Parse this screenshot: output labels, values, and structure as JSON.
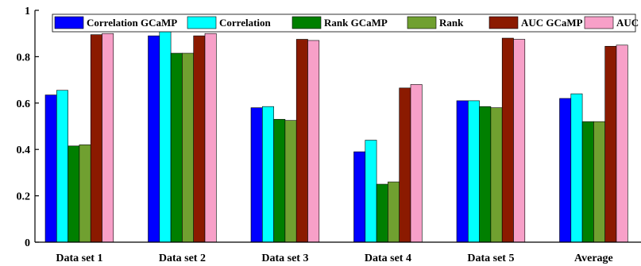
{
  "chart_data": {
    "type": "bar",
    "title": "",
    "xlabel": "",
    "ylabel": "",
    "categories": [
      "Data set 1",
      "Data set 2",
      "Data set 3",
      "Data set 4",
      "Data set 5",
      "Average"
    ],
    "series": [
      {
        "name": "Correlation GCaMP",
        "color": "#0000ff",
        "values": [
          0.635,
          0.89,
          0.58,
          0.39,
          0.61,
          0.62
        ]
      },
      {
        "name": "Correlation",
        "color": "#00ffff",
        "values": [
          0.655,
          0.91,
          0.585,
          0.44,
          0.61,
          0.64
        ]
      },
      {
        "name": "Rank GCaMP",
        "color": "#007f00",
        "values": [
          0.415,
          0.815,
          0.53,
          0.25,
          0.585,
          0.52
        ]
      },
      {
        "name": "Rank",
        "color": "#70a030",
        "values": [
          0.42,
          0.815,
          0.525,
          0.26,
          0.58,
          0.52
        ]
      },
      {
        "name": "AUC GCaMP",
        "color": "#8b1a00",
        "values": [
          0.895,
          0.89,
          0.875,
          0.665,
          0.88,
          0.845
        ]
      },
      {
        "name": "AUC",
        "color": "#f7a0c8",
        "values": [
          0.9,
          0.9,
          0.87,
          0.68,
          0.875,
          0.85
        ]
      }
    ],
    "ylim": [
      0,
      1
    ],
    "yticks": [
      "0",
      "0.2",
      "0.4",
      "0.6",
      "0.8",
      "1"
    ],
    "grid": false,
    "legend_position": "top"
  }
}
